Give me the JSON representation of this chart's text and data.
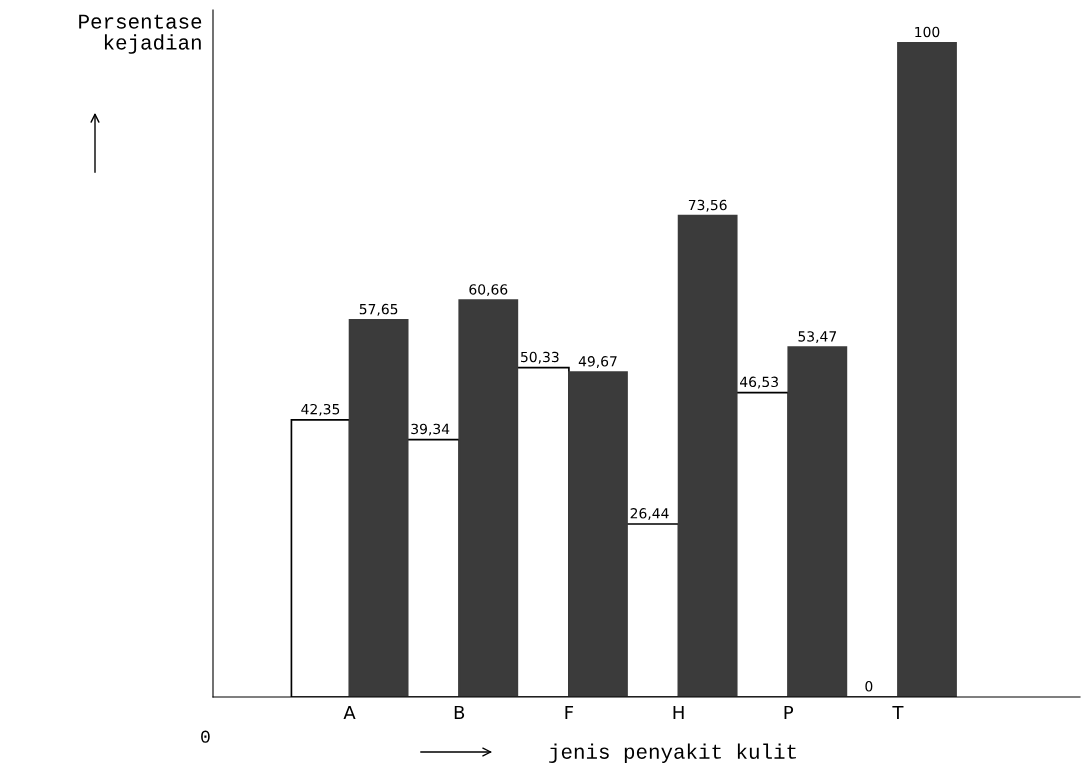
{
  "chart_data": {
    "type": "bar",
    "xlabel": "jenis penyakit kulit",
    "ylabel": "Persentase\nkejadian",
    "categories": [
      "A",
      "B",
      "F",
      "H",
      "P",
      "T"
    ],
    "series": [
      {
        "colors": [
          "#ffffff",
          "#ffffff",
          "#ffffff",
          "#ffffff",
          "#ffffff",
          "#000000"
        ],
        "values": [
          42.35,
          39.34,
          50.33,
          26.44,
          46.53,
          0
        ],
        "value_labels": [
          "42,35",
          "39,34",
          "50,33",
          "26,44",
          "46,53",
          "0"
        ]
      },
      {
        "color": "#3b3b3b",
        "values": [
          57.65,
          60.66,
          49.67,
          73.56,
          53.47,
          100
        ],
        "value_labels": [
          "57,65",
          "60,66",
          "49,67",
          "73,56",
          "53,47",
          "100"
        ]
      }
    ],
    "annotations": [
      "0"
    ],
    "grid": false,
    "legend": false
  }
}
